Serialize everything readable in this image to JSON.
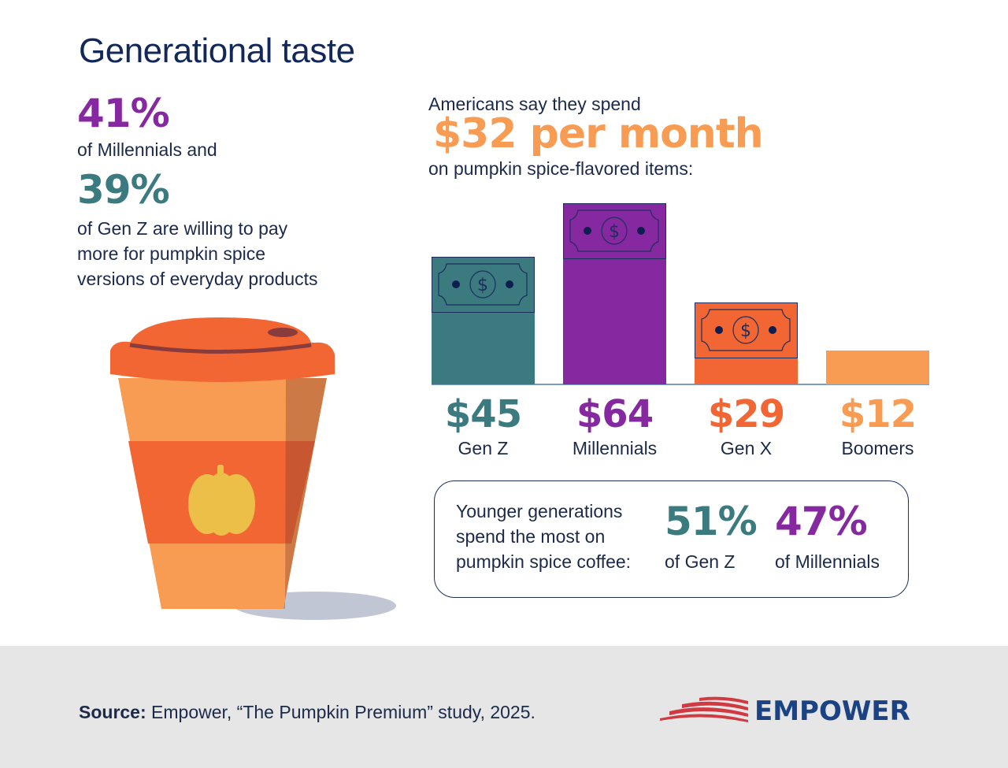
{
  "title": "Generational taste",
  "left": {
    "stat1": "41%",
    "stat1_text": "of Millennials and",
    "stat2": "39%",
    "stat2_lines": [
      "of Gen Z are willing to pay",
      "more for pumpkin spice",
      "versions of everyday products"
    ]
  },
  "headline": {
    "pre": "Americans say they spend",
    "amount": "$32 per month",
    "post": "on pumpkin spice-flavored items:"
  },
  "colors": {
    "genz": "#3b7a7e",
    "millennials": "#8629a0",
    "genx": "#f26633",
    "boomers": "#f89c53",
    "navy": "#12275a"
  },
  "chart_data": {
    "type": "bar",
    "categories": [
      "Gen Z",
      "Millennials",
      "Gen X",
      "Boomers"
    ],
    "values": [
      45,
      64,
      29,
      12
    ],
    "value_labels": [
      "$45",
      "$64",
      "$29",
      "$12"
    ],
    "unit": "$ per month",
    "icon": "dollar-bill-icon"
  },
  "coffee_box": {
    "lines": [
      "Younger generations",
      "spend the most on",
      "pumpkin spice coffee:"
    ],
    "stats": [
      {
        "value": "51%",
        "label": "of Gen Z"
      },
      {
        "value": "47%",
        "label": "of Millennials"
      }
    ]
  },
  "footer": {
    "source_label": "Source:",
    "source_text": " Empower, “The Pumpkin Premium” study, 2025.",
    "logo": "EMPOWER"
  }
}
